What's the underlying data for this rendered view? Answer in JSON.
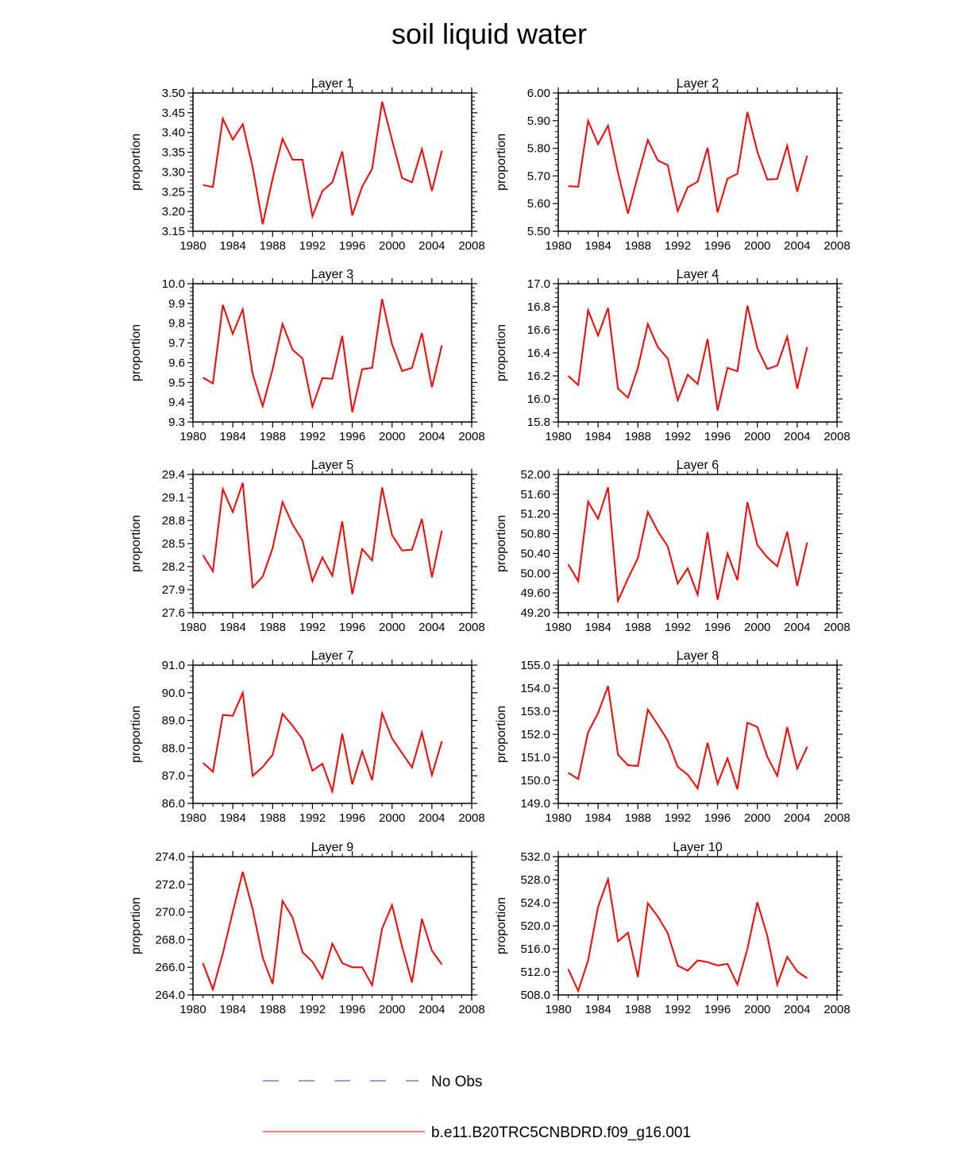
{
  "title": "soil liquid water",
  "legend": {
    "obs_label": "No Obs",
    "model_label": "b.e11.B20TRC5CNBDRD.f09_g16.001",
    "obs_color": "#3333cc",
    "model_color": "#ff0000"
  },
  "chart_data": [
    {
      "type": "line",
      "title": "Layer 1",
      "ylabel": "proportion",
      "xlim": [
        1980,
        2008
      ],
      "xticks": [
        "1980",
        "1984",
        "1988",
        "1992",
        "1996",
        "2000",
        "2004",
        "2008"
      ],
      "ylim": [
        3.15,
        3.5
      ],
      "yticks": [
        "3.15",
        "3.20",
        "3.25",
        "3.30",
        "3.35",
        "3.40",
        "3.45",
        "3.50"
      ],
      "x": [
        1981,
        1982,
        1983,
        1984,
        1985,
        1986,
        1987,
        1988,
        1989,
        1990,
        1991,
        1992,
        1993,
        1994,
        1995,
        1996,
        1997,
        1998,
        1999,
        2000,
        2001,
        2002,
        2003,
        2004,
        2005
      ],
      "series": [
        {
          "name": "b.e11.B20TRC5CNBDRD.f09_g16.001",
          "values": [
            3.267,
            3.262,
            3.435,
            3.382,
            3.421,
            3.312,
            3.168,
            3.283,
            3.384,
            3.331,
            3.331,
            3.188,
            3.252,
            3.274,
            3.352,
            3.19,
            3.263,
            3.308,
            3.478,
            3.381,
            3.285,
            3.274,
            3.358,
            3.252,
            3.354
          ]
        }
      ]
    },
    {
      "type": "line",
      "title": "Layer 2",
      "ylabel": "proportion",
      "xlim": [
        1980,
        2008
      ],
      "xticks": [
        "1980",
        "1984",
        "1988",
        "1992",
        "1996",
        "2000",
        "2004",
        "2008"
      ],
      "ylim": [
        5.5,
        6.0
      ],
      "yticks": [
        "5.50",
        "5.60",
        "5.70",
        "5.80",
        "5.90",
        "6.00"
      ],
      "x": [
        1981,
        1982,
        1983,
        1984,
        1985,
        1986,
        1987,
        1988,
        1989,
        1990,
        1991,
        1992,
        1993,
        1994,
        1995,
        1996,
        1997,
        1998,
        1999,
        2000,
        2001,
        2002,
        2003,
        2004,
        2005
      ],
      "series": [
        {
          "name": "b.e11.B20TRC5CNBDRD.f09_g16.001",
          "values": [
            5.663,
            5.661,
            5.899,
            5.815,
            5.882,
            5.712,
            5.564,
            5.701,
            5.83,
            5.756,
            5.739,
            5.573,
            5.659,
            5.679,
            5.802,
            5.568,
            5.69,
            5.708,
            5.931,
            5.788,
            5.687,
            5.689,
            5.809,
            5.643,
            5.773
          ]
        }
      ]
    },
    {
      "type": "line",
      "title": "Layer 3",
      "ylabel": "proportion",
      "xlim": [
        1980,
        2008
      ],
      "xticks": [
        "1980",
        "1984",
        "1988",
        "1992",
        "1996",
        "2000",
        "2004",
        "2008"
      ],
      "ylim": [
        9.3,
        10.0
      ],
      "yticks": [
        "9.3",
        "9.4",
        "9.5",
        "9.6",
        "9.7",
        "9.8",
        "9.9",
        "10.0"
      ],
      "x": [
        1981,
        1982,
        1983,
        1984,
        1985,
        1986,
        1987,
        1988,
        1989,
        1990,
        1991,
        1992,
        1993,
        1994,
        1995,
        1996,
        1997,
        1998,
        1999,
        2000,
        2001,
        2002,
        2003,
        2004,
        2005
      ],
      "series": [
        {
          "name": "b.e11.B20TRC5CNBDRD.f09_g16.001",
          "values": [
            9.525,
            9.495,
            9.893,
            9.746,
            9.87,
            9.542,
            9.38,
            9.567,
            9.796,
            9.666,
            9.622,
            9.377,
            9.522,
            9.519,
            9.736,
            9.35,
            9.567,
            9.574,
            9.923,
            9.693,
            9.558,
            9.574,
            9.75,
            9.476,
            9.688
          ]
        }
      ]
    },
    {
      "type": "line",
      "title": "Layer 4",
      "ylabel": "proportion",
      "xlim": [
        1980,
        2008
      ],
      "xticks": [
        "1980",
        "1984",
        "1988",
        "1992",
        "1996",
        "2000",
        "2004",
        "2008"
      ],
      "ylim": [
        15.8,
        17.0
      ],
      "yticks": [
        "15.8",
        "16.0",
        "16.2",
        "16.4",
        "16.6",
        "16.8",
        "17.0"
      ],
      "x": [
        1981,
        1982,
        1983,
        1984,
        1985,
        1986,
        1987,
        1988,
        1989,
        1990,
        1991,
        1992,
        1993,
        1994,
        1995,
        1996,
        1997,
        1998,
        1999,
        2000,
        2001,
        2002,
        2003,
        2004,
        2005
      ],
      "series": [
        {
          "name": "b.e11.B20TRC5CNBDRD.f09_g16.001",
          "values": [
            16.2,
            16.12,
            16.77,
            16.55,
            16.79,
            16.09,
            16.01,
            16.27,
            16.65,
            16.45,
            16.35,
            15.99,
            16.21,
            16.13,
            16.52,
            15.9,
            16.27,
            16.24,
            16.81,
            16.44,
            16.26,
            16.29,
            16.54,
            16.09,
            16.45
          ]
        }
      ]
    },
    {
      "type": "line",
      "title": "Layer 5",
      "ylabel": "proportion",
      "xlim": [
        1980,
        2008
      ],
      "xticks": [
        "1980",
        "1984",
        "1988",
        "1992",
        "1996",
        "2000",
        "2004",
        "2008"
      ],
      "ylim": [
        27.6,
        29.4
      ],
      "yticks": [
        "27.6",
        "27.9",
        "28.2",
        "28.5",
        "28.8",
        "29.1",
        "29.4"
      ],
      "x": [
        1981,
        1982,
        1983,
        1984,
        1985,
        1986,
        1987,
        1988,
        1989,
        1990,
        1991,
        1992,
        1993,
        1994,
        1995,
        1996,
        1997,
        1998,
        1999,
        2000,
        2001,
        2002,
        2003,
        2004,
        2005
      ],
      "series": [
        {
          "name": "b.e11.B20TRC5CNBDRD.f09_g16.001",
          "values": [
            28.35,
            28.14,
            29.21,
            28.91,
            29.29,
            27.93,
            28.07,
            28.44,
            29.04,
            28.75,
            28.54,
            28.01,
            28.32,
            28.08,
            28.79,
            27.84,
            28.43,
            28.28,
            29.23,
            28.61,
            28.41,
            28.42,
            28.82,
            28.06,
            28.67
          ]
        }
      ]
    },
    {
      "type": "line",
      "title": "Layer 6",
      "ylabel": "proportion",
      "xlim": [
        1980,
        2008
      ],
      "xticks": [
        "1980",
        "1984",
        "1988",
        "1992",
        "1996",
        "2000",
        "2004",
        "2008"
      ],
      "ylim": [
        49.2,
        52.0
      ],
      "yticks": [
        "49.20",
        "49.60",
        "50.00",
        "50.40",
        "50.80",
        "51.20",
        "51.60",
        "52.00"
      ],
      "x": [
        1981,
        1982,
        1983,
        1984,
        1985,
        1986,
        1987,
        1988,
        1989,
        1990,
        1991,
        1992,
        1993,
        1994,
        1995,
        1996,
        1997,
        1998,
        1999,
        2000,
        2001,
        2002,
        2003,
        2004,
        2005
      ],
      "series": [
        {
          "name": "b.e11.B20TRC5CNBDRD.f09_g16.001",
          "values": [
            50.18,
            49.84,
            51.45,
            51.1,
            51.74,
            49.44,
            49.89,
            50.31,
            51.24,
            50.85,
            50.54,
            49.79,
            50.1,
            49.56,
            50.83,
            49.46,
            50.4,
            49.86,
            51.44,
            50.57,
            50.32,
            50.14,
            50.84,
            49.74,
            50.62
          ]
        }
      ]
    },
    {
      "type": "line",
      "title": "Layer 7",
      "ylabel": "proportion",
      "xlim": [
        1980,
        2008
      ],
      "xticks": [
        "1980",
        "1984",
        "1988",
        "1992",
        "1996",
        "2000",
        "2004",
        "2008"
      ],
      "ylim": [
        86.0,
        91.0
      ],
      "yticks": [
        "86.0",
        "87.0",
        "88.0",
        "89.0",
        "90.0",
        "91.0"
      ],
      "x": [
        1981,
        1982,
        1983,
        1984,
        1985,
        1986,
        1987,
        1988,
        1989,
        1990,
        1991,
        1992,
        1993,
        1994,
        1995,
        1996,
        1997,
        1998,
        1999,
        2000,
        2001,
        2002,
        2003,
        2004,
        2005
      ],
      "series": [
        {
          "name": "b.e11.B20TRC5CNBDRD.f09_g16.001",
          "values": [
            87.47,
            87.15,
            89.2,
            89.17,
            90.0,
            86.99,
            87.32,
            87.76,
            89.24,
            88.81,
            88.32,
            87.18,
            87.44,
            86.43,
            88.52,
            86.69,
            87.88,
            86.84,
            89.26,
            88.35,
            87.82,
            87.3,
            88.56,
            87.02,
            88.25
          ]
        }
      ]
    },
    {
      "type": "line",
      "title": "Layer 8",
      "ylabel": "proportion",
      "xlim": [
        1980,
        2008
      ],
      "xticks": [
        "1980",
        "1984",
        "1988",
        "1992",
        "1996",
        "2000",
        "2004",
        "2008"
      ],
      "ylim": [
        149.0,
        155.0
      ],
      "yticks": [
        "149.0",
        "150.0",
        "151.0",
        "152.0",
        "153.0",
        "154.0",
        "155.0"
      ],
      "x": [
        1981,
        1982,
        1983,
        1984,
        1985,
        1986,
        1987,
        1988,
        1989,
        1990,
        1991,
        1992,
        1993,
        1994,
        1995,
        1996,
        1997,
        1998,
        1999,
        2000,
        2001,
        2002,
        2003,
        2004,
        2005
      ],
      "series": [
        {
          "name": "b.e11.B20TRC5CNBDRD.f09_g16.001",
          "values": [
            150.33,
            150.06,
            152.09,
            152.92,
            154.09,
            151.12,
            150.66,
            150.62,
            153.07,
            152.41,
            151.73,
            150.59,
            150.25,
            149.65,
            151.63,
            149.85,
            150.96,
            149.61,
            152.5,
            152.32,
            151.02,
            150.19,
            152.31,
            150.51,
            151.46
          ]
        }
      ]
    },
    {
      "type": "line",
      "title": "Layer 9",
      "ylabel": "proportion",
      "xlim": [
        1980,
        2008
      ],
      "xticks": [
        "1980",
        "1984",
        "1988",
        "1992",
        "1996",
        "2000",
        "2004",
        "2008"
      ],
      "ylim": [
        264.0,
        274.0
      ],
      "yticks": [
        "264.0",
        "266.0",
        "268.0",
        "270.0",
        "272.0",
        "274.0"
      ],
      "x": [
        1981,
        1982,
        1983,
        1984,
        1985,
        1986,
        1987,
        1988,
        1989,
        1990,
        1991,
        1992,
        1993,
        1994,
        1995,
        1996,
        1997,
        1998,
        1999,
        2000,
        2001,
        2002,
        2003,
        2004,
        2005
      ],
      "series": [
        {
          "name": "b.e11.B20TRC5CNBDRD.f09_g16.001",
          "values": [
            266.3,
            264.4,
            267.0,
            270.0,
            272.9,
            270.2,
            266.7,
            264.8,
            270.8,
            269.6,
            267.1,
            266.4,
            265.2,
            267.7,
            266.3,
            266.0,
            266.0,
            264.7,
            268.8,
            270.5,
            267.5,
            264.9,
            269.5,
            267.2,
            266.2
          ]
        }
      ]
    },
    {
      "type": "line",
      "title": "Layer 10",
      "ylabel": "proportion",
      "xlim": [
        1980,
        2008
      ],
      "xticks": [
        "1980",
        "1984",
        "1988",
        "1992",
        "1996",
        "2000",
        "2004",
        "2008"
      ],
      "ylim": [
        508.0,
        532.0
      ],
      "yticks": [
        "508.0",
        "512.0",
        "516.0",
        "520.0",
        "524.0",
        "528.0",
        "532.0"
      ],
      "x": [
        1981,
        1982,
        1983,
        1984,
        1985,
        1986,
        1987,
        1988,
        1989,
        1990,
        1991,
        1992,
        1993,
        1994,
        1995,
        1996,
        1997,
        1998,
        1999,
        2000,
        2001,
        2002,
        2003,
        2004,
        2005
      ],
      "series": [
        {
          "name": "b.e11.B20TRC5CNBDRD.f09_g16.001",
          "values": [
            512.5,
            508.7,
            514.0,
            523.3,
            528.1,
            517.3,
            518.8,
            511.1,
            523.9,
            521.6,
            518.7,
            513.1,
            512.2,
            514.0,
            513.7,
            513.1,
            513.4,
            509.8,
            516.0,
            524.1,
            518.2,
            509.8,
            514.6,
            512.1,
            510.9
          ]
        }
      ]
    }
  ]
}
